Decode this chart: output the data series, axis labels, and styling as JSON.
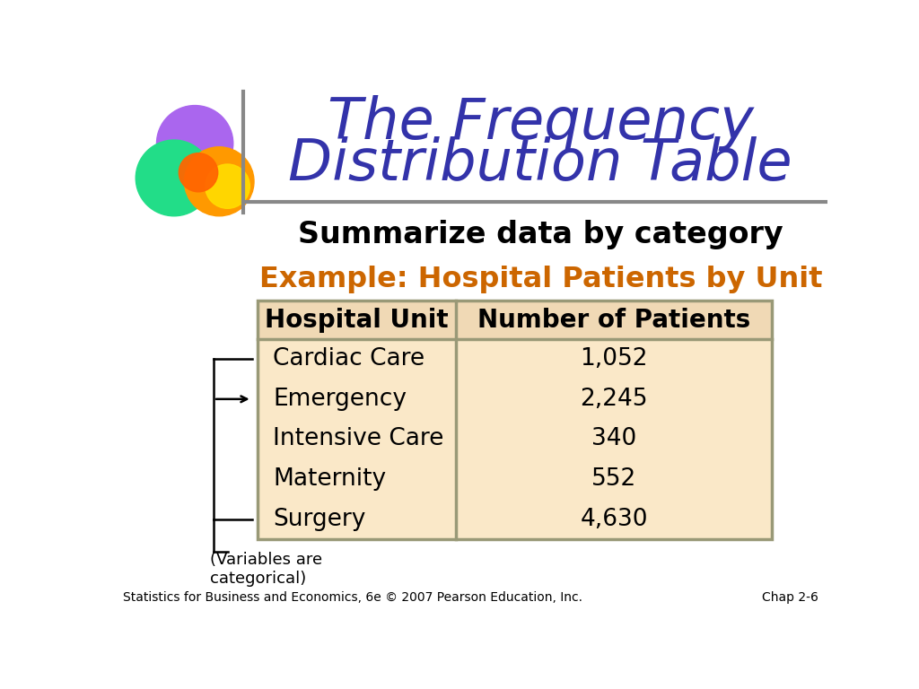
{
  "title_line1": "The Frequency",
  "title_line2": "Distribution Table",
  "title_color": "#3333AA",
  "subtitle": "Summarize data by category",
  "subtitle_color": "#000000",
  "example_title": "Example: Hospital Patients by Unit",
  "example_title_color": "#CC6600",
  "col_headers": [
    "Hospital Unit",
    "Number of Patients"
  ],
  "rows": [
    [
      "Cardiac Care",
      "1,052"
    ],
    [
      "Emergency",
      "2,245"
    ],
    [
      "Intensive Care",
      "340"
    ],
    [
      "Maternity",
      "552"
    ],
    [
      "Surgery",
      "4,630"
    ]
  ],
  "header_bg": "#F0D9B5",
  "data_bg": "#FAE8C8",
  "table_border_color": "#999977",
  "bracket_label": "(Variables are\ncategorical)",
  "footer_left": "Statistics for Business and Economics, 6e © 2007 Pearson Education, Inc.",
  "footer_right": "Chap 2-6",
  "background_color": "#FFFFFF",
  "logo_purple": "#AA66EE",
  "logo_green": "#22DD88",
  "logo_orange": "#FF9900",
  "logo_yellow": "#FFDD00",
  "logo_red_orange": "#FF6600",
  "separator_color": "#888888"
}
